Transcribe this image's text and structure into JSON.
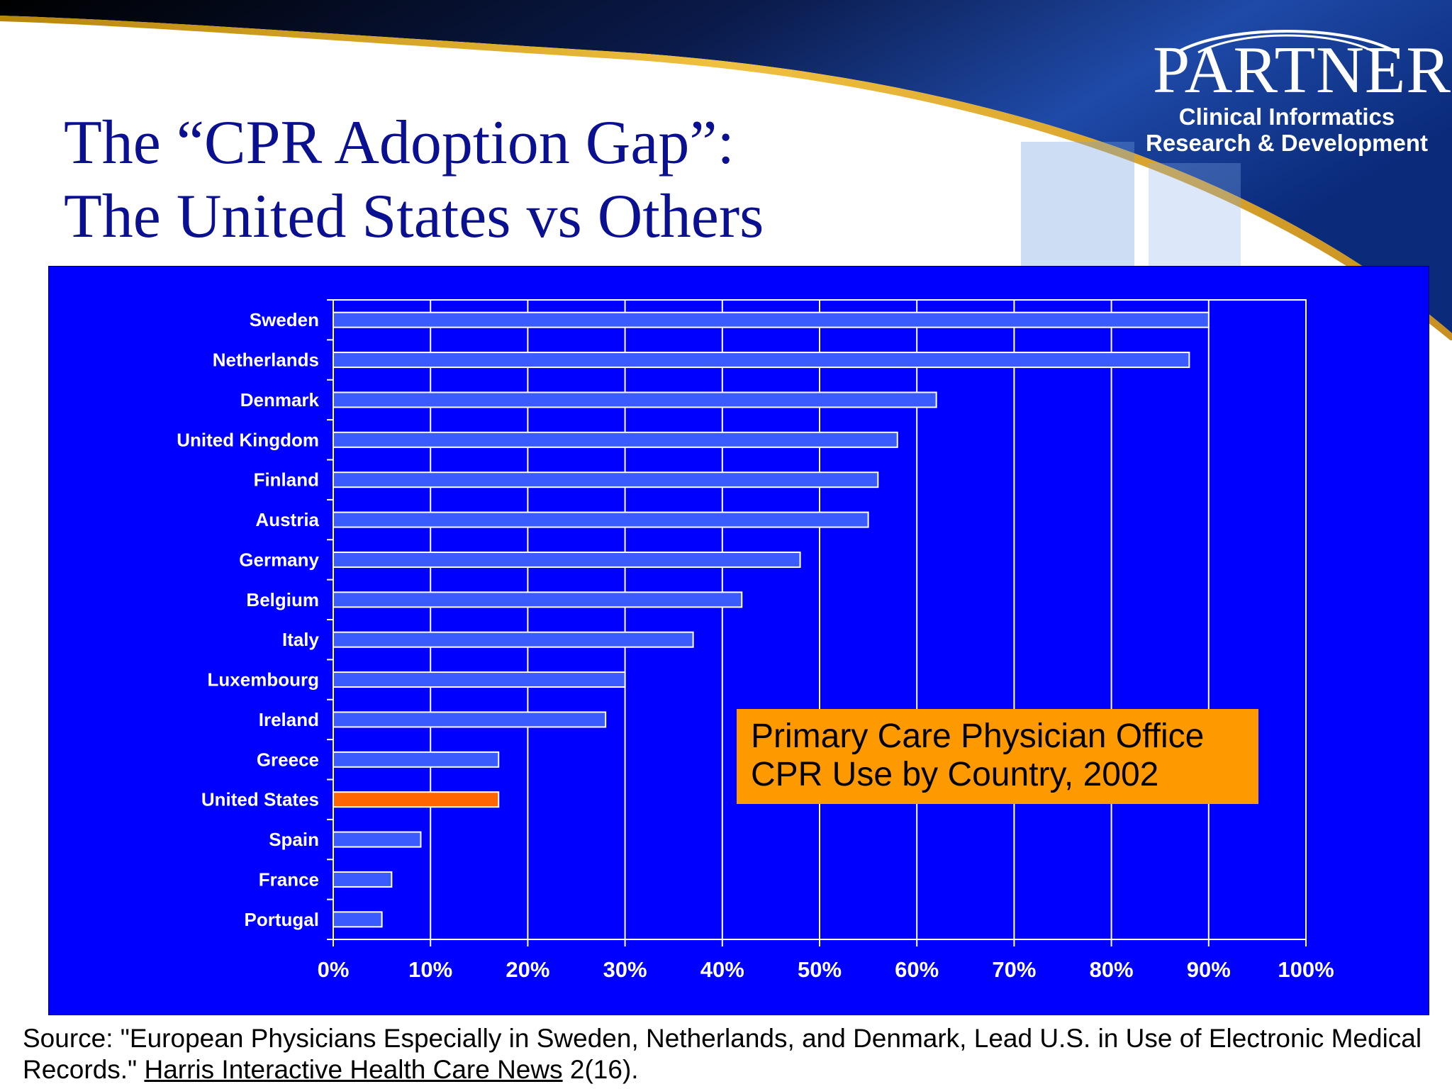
{
  "logo": {
    "wordmark": "PARTNERS",
    "subtitle_line1": "Clinical Informatics",
    "subtitle_line2": "Research & Development"
  },
  "title": {
    "line1": "The “CPR Adoption Gap”:",
    "line2": "The United States vs Others"
  },
  "colors": {
    "title": "#0a1090",
    "panel_background": "#0000ff",
    "bar": "#3a5cff",
    "highlight_bar": "#ff6600",
    "caption_background": "#ff9900"
  },
  "chart_data": {
    "type": "bar",
    "orientation": "horizontal",
    "title": "",
    "xlabel": "",
    "ylabel": "",
    "categories": [
      "Sweden",
      "Netherlands",
      "Denmark",
      "United Kingdom",
      "Finland",
      "Austria",
      "Germany",
      "Belgium",
      "Italy",
      "Luxembourg",
      "Ireland",
      "Greece",
      "United States",
      "Spain",
      "France",
      "Portugal"
    ],
    "values": [
      90,
      88,
      62,
      58,
      56,
      55,
      48,
      42,
      37,
      30,
      28,
      17,
      17,
      9,
      6,
      5
    ],
    "highlight_category": "United States",
    "xlim": [
      0,
      100
    ],
    "xticks": [
      0,
      10,
      20,
      30,
      40,
      50,
      60,
      70,
      80,
      90,
      100
    ],
    "xtick_labels": [
      "0%",
      "10%",
      "20%",
      "30%",
      "40%",
      "50%",
      "60%",
      "70%",
      "80%",
      "90%",
      "100%"
    ],
    "grid": "vertical",
    "legend": "none"
  },
  "caption": {
    "line1": "Primary Care Physician Office",
    "line2": "CPR Use by Country, 2002"
  },
  "source": {
    "prefix": "Source:  \"European Physicians Especially in Sweden, Netherlands, and Denmark, Lead U.S. in Use of Electronic Medical Records.\" ",
    "publication": "Harris Interactive Health Care News",
    "suffix": " 2(16)."
  }
}
